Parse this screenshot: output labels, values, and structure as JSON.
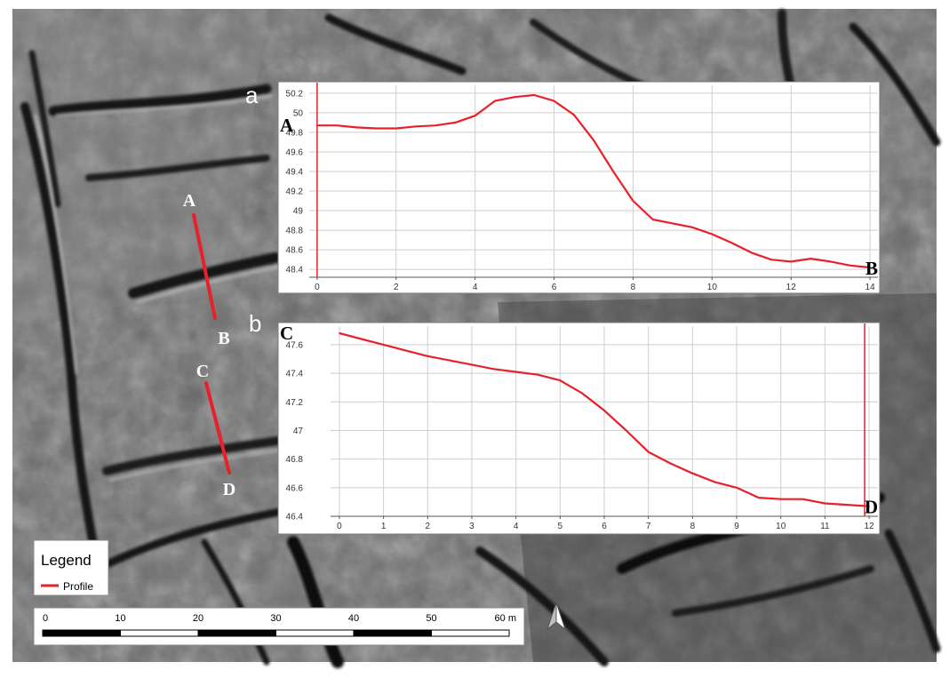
{
  "panel_labels": {
    "a": "a",
    "b": "b"
  },
  "map": {
    "points": {
      "A": "A",
      "B": "B",
      "C": "C",
      "D": "D"
    },
    "profile_color": "#e8202a"
  },
  "legend": {
    "title": "Legend",
    "item_label": "Profile"
  },
  "scale_bar": {
    "labels": [
      "0",
      "10",
      "20",
      "30",
      "40",
      "50",
      "60 m"
    ]
  },
  "north_arrow": {
    "icon": "north-arrow-icon"
  },
  "chart_data": [
    {
      "type": "line",
      "panel": "a",
      "start_label": "A",
      "end_label": "B",
      "x": [
        0,
        0.5,
        1,
        1.5,
        2,
        2.5,
        3,
        3.5,
        4,
        4.5,
        5,
        5.5,
        6,
        6.5,
        7,
        7.5,
        8,
        8.5,
        9,
        9.5,
        10,
        10.5,
        11,
        11.5,
        12,
        12.5,
        13,
        13.5,
        14
      ],
      "y": [
        49.87,
        49.87,
        49.85,
        49.84,
        49.84,
        49.86,
        49.87,
        49.9,
        49.97,
        50.12,
        50.16,
        50.18,
        50.12,
        49.98,
        49.72,
        49.4,
        49.1,
        48.91,
        48.87,
        48.83,
        48.76,
        48.67,
        48.57,
        48.5,
        48.48,
        48.51,
        48.48,
        48.44,
        48.42
      ],
      "xlim": [
        -0.2,
        14.2
      ],
      "ylim": [
        48.32,
        50.28
      ],
      "xticks": [
        0,
        2,
        4,
        6,
        8,
        10,
        12,
        14
      ],
      "xtick_labels": [
        "0",
        "2",
        "4",
        "6",
        "8",
        "10",
        "12",
        "14"
      ],
      "yticks": [
        48.4,
        48.6,
        48.8,
        49.0,
        49.2,
        49.4,
        49.6,
        49.8,
        50.0,
        50.2
      ],
      "ytick_labels": [
        "48.4",
        "48.6",
        "48.8",
        "49",
        "49.2",
        "49.4",
        "49.6",
        "49.8",
        "50",
        "50.2"
      ],
      "vline_x": 0,
      "grid": true,
      "line_color": "#e8202a"
    },
    {
      "type": "line",
      "panel": "b",
      "start_label": "C",
      "end_label": "D",
      "x": [
        0,
        0.5,
        1,
        1.5,
        2,
        2.5,
        3,
        3.5,
        4,
        4.5,
        5,
        5.5,
        6,
        6.5,
        7,
        7.5,
        8,
        8.5,
        9,
        9.5,
        10,
        10.5,
        11,
        11.5,
        12
      ],
      "y": [
        47.68,
        47.64,
        47.6,
        47.56,
        47.52,
        47.49,
        47.46,
        47.43,
        47.41,
        47.39,
        47.35,
        47.26,
        47.14,
        47.0,
        46.85,
        46.77,
        46.7,
        46.64,
        46.6,
        46.53,
        46.52,
        46.52,
        46.49,
        46.48,
        46.47
      ],
      "xlim": [
        -0.2,
        12.2
      ],
      "ylim": [
        46.4,
        47.73
      ],
      "xticks": [
        0,
        1,
        2,
        3,
        4,
        5,
        6,
        7,
        8,
        9,
        10,
        11,
        12
      ],
      "xtick_labels": [
        "0",
        "1",
        "2",
        "3",
        "4",
        "5",
        "6",
        "7",
        "8",
        "9",
        "10",
        "11",
        "12"
      ],
      "yticks": [
        46.4,
        46.6,
        46.8,
        47.0,
        47.2,
        47.4,
        47.6
      ],
      "ytick_labels": [
        "46.4",
        "46.6",
        "46.8",
        "47",
        "47.2",
        "47.4",
        "47.6"
      ],
      "vline_x": 11.9,
      "grid": true,
      "line_color": "#e8202a"
    }
  ]
}
